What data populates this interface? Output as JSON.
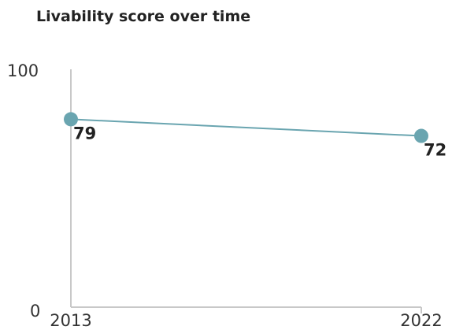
{
  "chart_data": {
    "type": "line",
    "title": "Livability score over time",
    "x": [
      "2013",
      "2022"
    ],
    "series": [
      {
        "values": [
          79,
          72
        ]
      }
    ],
    "data_labels": [
      "79",
      "72"
    ],
    "y_ticks": [
      "0",
      "100"
    ],
    "ylim": [
      0,
      100
    ],
    "grid": false,
    "legend": "none",
    "colors": {
      "series": "#6aa5b0",
      "axis": "#c8c8c8",
      "text": "#222222"
    }
  }
}
